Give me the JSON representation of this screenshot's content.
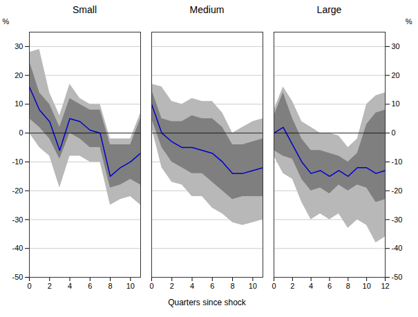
{
  "chart_data": [
    {
      "type": "line",
      "title": "Small",
      "ylabel": "%",
      "x": [
        0,
        1,
        2,
        3,
        4,
        5,
        6,
        7,
        8,
        9,
        10,
        11
      ],
      "values": [
        16,
        8,
        4,
        -6,
        5,
        4,
        1,
        0,
        -15,
        -12,
        -10,
        -7
      ],
      "color": "#0000CC",
      "inner_band": {
        "upper": [
          25,
          14,
          10,
          2,
          12,
          10,
          8,
          8,
          -4,
          -4,
          -4,
          5
        ],
        "lower": [
          5,
          2,
          -2,
          -9,
          0,
          -2,
          -5,
          -5,
          -19,
          -18,
          -16,
          -18
        ],
        "color": "#7f7f7f"
      },
      "outer_band": {
        "upper": [
          28,
          29,
          14,
          6,
          17,
          12,
          10,
          10,
          -2,
          -2,
          -2,
          7
        ],
        "lower": [
          0,
          -5,
          -8,
          -19,
          -8,
          -8,
          -10,
          -10,
          -25,
          -23,
          -22,
          -25
        ],
        "color": "#b8b8b8"
      },
      "hline": 0,
      "xlim": [
        0,
        11
      ],
      "xticks": [
        0,
        2,
        4,
        6,
        8,
        10
      ],
      "ylim": [
        -50,
        35
      ],
      "yticks": [
        -50,
        -40,
        -30,
        -20,
        -10,
        0,
        10,
        20,
        30
      ],
      "grid": true
    },
    {
      "type": "line",
      "title": "Medium",
      "xlabel": "Quarters since shock",
      "x": [
        0,
        1,
        2,
        3,
        4,
        5,
        6,
        7,
        8,
        9,
        10,
        11
      ],
      "values": [
        10,
        0,
        -3,
        -5,
        -5,
        -6,
        -7,
        -10,
        -14,
        -14,
        -13,
        -12
      ],
      "color": "#0000CC",
      "inner_band": {
        "upper": [
          15,
          5,
          4,
          4,
          6,
          5,
          5,
          2,
          -4,
          -4,
          -3,
          -2
        ],
        "lower": [
          5,
          -5,
          -10,
          -12,
          -14,
          -14,
          -17,
          -20,
          -23,
          -22,
          -22,
          -22
        ],
        "color": "#7f7f7f"
      },
      "outer_band": {
        "upper": [
          17,
          16,
          11,
          10,
          12,
          11,
          11,
          7,
          0,
          2,
          4,
          5
        ],
        "lower": [
          2,
          -12,
          -17,
          -18,
          -22,
          -22,
          -26,
          -28,
          -31,
          -32,
          -31,
          -30
        ],
        "color": "#b8b8b8"
      },
      "hline": 0,
      "xlim": [
        0,
        11
      ],
      "xticks": [
        0,
        2,
        4,
        6,
        8,
        10
      ],
      "ylim": [
        -50,
        35
      ],
      "yticks": [
        -50,
        -40,
        -30,
        -20,
        -10,
        0,
        10,
        20,
        30
      ],
      "grid": true,
      "tick_labels": "x"
    },
    {
      "type": "line",
      "title": "Large",
      "ylabel": "%",
      "x": [
        0,
        1,
        2,
        3,
        4,
        5,
        6,
        7,
        8,
        9,
        10,
        11,
        12
      ],
      "values": [
        0,
        2,
        -4,
        -10,
        -14,
        -13,
        -15,
        -13,
        -15,
        -12,
        -12,
        -14,
        -13
      ],
      "color": "#0000CC",
      "inner_band": {
        "upper": [
          6,
          14,
          5,
          -2,
          -6,
          -6,
          -7,
          -8,
          -10,
          -7,
          3,
          7,
          8
        ],
        "lower": [
          -6,
          -8,
          -9,
          -16,
          -20,
          -19,
          -21,
          -18,
          -20,
          -18,
          -19,
          -24,
          -23
        ],
        "color": "#7f7f7f"
      },
      "outer_band": {
        "upper": [
          8,
          16,
          11,
          4,
          2,
          0,
          0,
          -1,
          -5,
          -2,
          10,
          13,
          14
        ],
        "lower": [
          -8,
          -14,
          -16,
          -24,
          -30,
          -28,
          -30,
          -28,
          -33,
          -30,
          -32,
          -38,
          -36
        ],
        "color": "#b8b8b8"
      },
      "hline": 0,
      "xlim": [
        0,
        12
      ],
      "xticks": [
        0,
        2,
        4,
        6,
        8,
        10,
        12
      ],
      "ylim": [
        -50,
        35
      ],
      "yticks": [
        -50,
        -40,
        -30,
        -20,
        -10,
        0,
        10,
        20,
        30
      ],
      "grid": true
    }
  ]
}
